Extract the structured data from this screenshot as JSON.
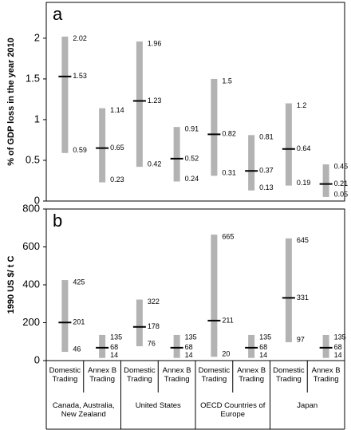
{
  "chart_data": [
    {
      "type": "range",
      "panel": "a",
      "y_label": "% of GDP loss in the year 2010",
      "ylim": [
        0,
        2.44
      ],
      "yticks": [
        0,
        0.5,
        1,
        1.5,
        2
      ],
      "color": "#b3b3b3",
      "high": [
        2.02,
        1.14,
        1.96,
        0.91,
        1.5,
        0.81,
        1.2,
        0.45
      ],
      "mid": [
        1.53,
        0.65,
        1.23,
        0.52,
        0.82,
        0.37,
        0.64,
        0.21
      ],
      "low": [
        0.59,
        0.23,
        0.42,
        0.24,
        0.31,
        0.13,
        0.19,
        0.05
      ]
    },
    {
      "type": "range",
      "panel": "b",
      "y_label": "1990 US $/ t C",
      "ylim": [
        0,
        800
      ],
      "yticks": [
        0,
        200,
        400,
        600,
        800
      ],
      "color": "#b3b3b3",
      "high": [
        425,
        135,
        322,
        135,
        665,
        135,
        645,
        135
      ],
      "mid": [
        201,
        68,
        178,
        68,
        211,
        68,
        331,
        68
      ],
      "low": [
        46,
        14,
        76,
        14,
        20,
        14,
        97,
        14
      ],
      "categories": [
        "Domestic Trading",
        "Annex B Trading",
        "Domestic Trading",
        "Annex B Trading",
        "Domestic Trading",
        "Annex B Trading",
        "Domestic Trading",
        "Annex B Trading"
      ],
      "groups": [
        "Canada, Australia, New Zealand",
        "United States",
        "OECD Countries of Europe",
        "Japan"
      ]
    }
  ]
}
